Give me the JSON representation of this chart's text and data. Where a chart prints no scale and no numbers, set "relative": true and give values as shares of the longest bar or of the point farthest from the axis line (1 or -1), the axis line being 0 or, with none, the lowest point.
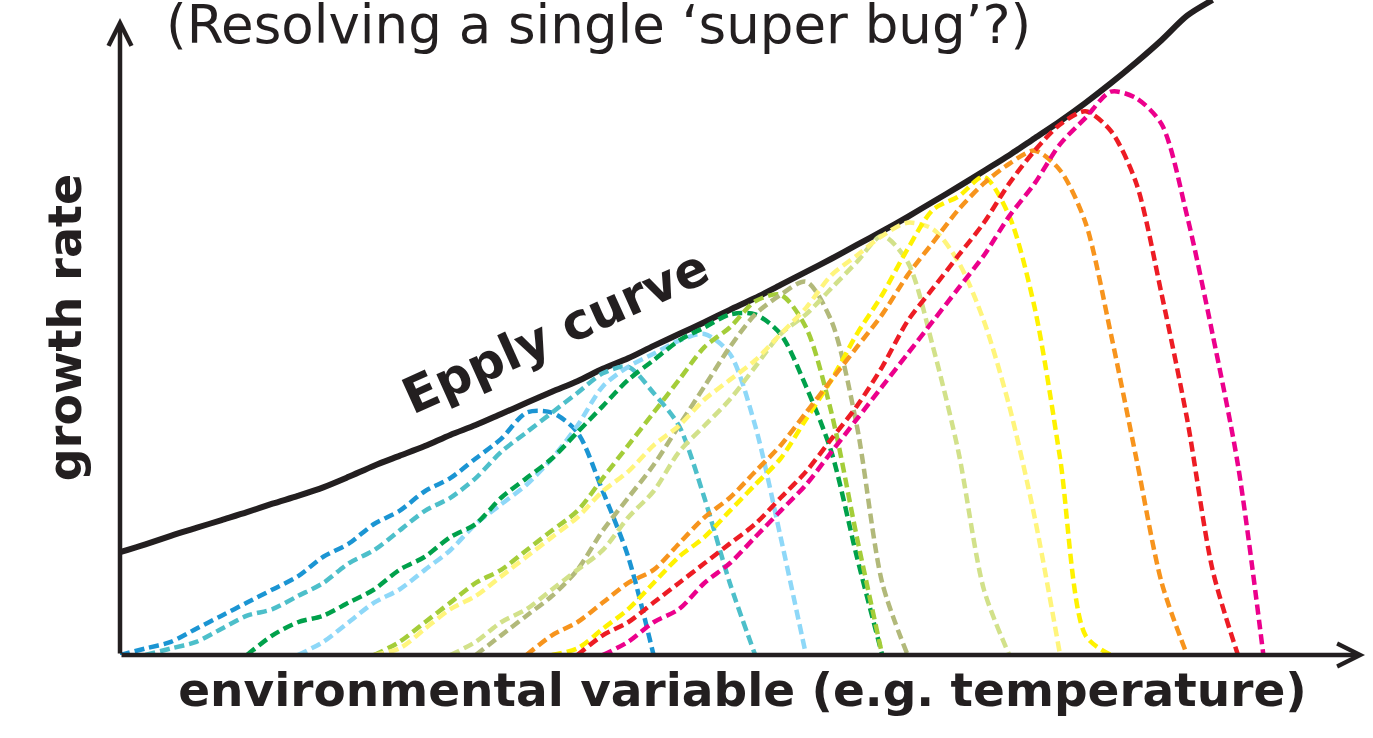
{
  "chart_data": {
    "type": "line",
    "title": "(Resolving a single ‘super bug’?)",
    "xlabel": "environmental variable (e.g. temperature)",
    "ylabel": "growth rate",
    "relative": true,
    "line_style": "dashed",
    "categories": [
      null,
      null,
      null,
      null,
      null,
      null,
      null,
      null,
      null,
      null,
      null,
      null,
      null,
      null,
      null,
      null,
      null,
      null,
      null,
      null,
      null,
      null,
      null,
      null,
      null,
      null,
      null,
      null,
      null,
      null,
      null,
      null,
      null,
      null,
      null,
      null,
      null,
      null,
      null,
      null,
      null,
      null,
      null,
      null,
      null,
      null,
      null,
      null,
      null,
      null
    ],
    "series": [
      {
        "name": "Epply curve",
        "color": "#231f20",
        "line_style": "solid",
        "values": [
          0.157,
          0.169,
          0.182,
          0.194,
          0.206,
          0.218,
          0.231,
          0.243,
          0.256,
          0.272,
          0.289,
          0.304,
          0.319,
          0.336,
          0.351,
          0.368,
          0.385,
          0.402,
          0.418,
          0.437,
          0.453,
          0.472,
          0.49,
          0.508,
          0.527,
          0.545,
          0.565,
          0.585,
          0.605,
          0.626,
          0.647,
          0.669,
          0.692,
          0.715,
          0.739,
          0.763,
          0.789,
          0.815,
          0.843,
          0.873,
          0.905,
          0.939,
          0.976,
          1.0,
          null,
          null,
          null,
          null,
          null,
          null
        ]
      },
      {
        "color": "#1b95d3",
        "values": [
          0,
          0.01,
          0.02,
          0.04,
          0.06,
          0.08,
          0.1,
          0.12,
          0.15,
          0.17,
          0.2,
          0.22,
          0.25,
          0.27,
          0.3,
          0.33,
          0.37,
          0.37,
          0.34,
          0.25,
          0.15,
          0,
          null,
          null,
          null,
          null,
          null,
          null,
          null,
          null,
          null,
          null,
          null,
          null,
          null,
          null,
          null,
          null,
          null,
          null,
          null,
          null,
          null,
          null,
          null,
          null,
          null,
          null,
          null,
          null
        ]
      },
      {
        "color": "#4dbfca",
        "values": [
          null,
          0,
          0.01,
          0.02,
          0.04,
          0.06,
          0.07,
          0.09,
          0.11,
          0.14,
          0.16,
          0.19,
          0.22,
          0.24,
          0.27,
          0.31,
          0.34,
          0.37,
          0.4,
          0.43,
          0.44,
          0.4,
          0.35,
          0.24,
          0.11,
          0,
          null,
          null,
          null,
          null,
          null,
          null,
          null,
          null,
          null,
          null,
          null,
          null,
          null,
          null,
          null,
          null,
          null,
          null,
          null,
          null,
          null,
          null,
          null,
          null
        ]
      },
      {
        "color": "#8ed8f8",
        "values": [
          null,
          null,
          null,
          null,
          null,
          null,
          null,
          0,
          0.02,
          0.05,
          0.08,
          0.1,
          0.13,
          0.16,
          0.2,
          0.23,
          0.26,
          0.3,
          0.35,
          0.41,
          0.44,
          0.46,
          0.48,
          0.49,
          0.46,
          0.35,
          0.18,
          0,
          null,
          null,
          null,
          null,
          null,
          null,
          null,
          null,
          null,
          null,
          null,
          null,
          null,
          null,
          null,
          null,
          null,
          null,
          null,
          null,
          null,
          null
        ]
      },
      {
        "color": "#00a14b",
        "values": [
          null,
          null,
          null,
          null,
          null,
          0,
          0.03,
          0.05,
          0.06,
          0.08,
          0.1,
          0.13,
          0.15,
          0.18,
          0.2,
          0.24,
          0.27,
          0.3,
          0.34,
          0.38,
          0.42,
          0.45,
          0.48,
          0.5,
          0.52,
          0.52,
          0.49,
          0.41,
          0.31,
          0.15,
          0,
          null,
          null,
          null,
          null,
          null,
          null,
          null,
          null,
          null,
          null,
          null,
          null,
          null,
          null,
          null,
          null,
          null,
          null,
          null
        ]
      },
      {
        "color": "#a4cd39",
        "values": [
          null,
          null,
          null,
          null,
          null,
          null,
          null,
          null,
          null,
          null,
          0,
          0.02,
          0.05,
          0.08,
          0.11,
          0.13,
          0.16,
          0.19,
          0.22,
          0.27,
          0.32,
          0.37,
          0.42,
          0.47,
          0.5,
          0.54,
          0.55,
          0.5,
          0.37,
          0.18,
          0,
          null,
          null,
          null,
          null,
          null,
          null,
          null,
          null,
          null,
          null,
          null,
          null,
          null,
          null,
          null,
          null,
          null,
          null,
          null
        ]
      },
      {
        "color": "#b2b97a",
        "values": [
          null,
          null,
          null,
          null,
          null,
          null,
          null,
          null,
          null,
          null,
          null,
          null,
          null,
          null,
          0,
          0.03,
          0.06,
          0.09,
          0.13,
          0.19,
          0.24,
          0.29,
          0.35,
          0.41,
          0.47,
          0.52,
          0.55,
          0.57,
          0.51,
          0.35,
          0.11,
          0,
          null,
          null,
          null,
          null,
          null,
          null,
          null,
          null,
          null,
          null,
          null,
          null,
          null,
          null,
          null,
          null,
          null,
          null
        ]
      },
      {
        "color": "#d2e18a",
        "values": [
          null,
          null,
          null,
          null,
          null,
          null,
          null,
          null,
          null,
          null,
          null,
          null,
          null,
          0,
          0.02,
          0.05,
          0.07,
          0.1,
          0.13,
          0.16,
          0.21,
          0.25,
          0.31,
          0.35,
          0.39,
          0.44,
          0.49,
          0.52,
          0.56,
          0.6,
          0.64,
          0.6,
          0.47,
          0.31,
          0.1,
          0,
          null,
          null,
          null,
          null,
          null,
          null,
          null,
          null,
          null,
          null,
          null,
          null,
          null,
          null
        ]
      },
      {
        "color": "#fff57c",
        "values": [
          null,
          null,
          null,
          null,
          null,
          null,
          null,
          null,
          null,
          null,
          0,
          0.01,
          0.04,
          0.07,
          0.09,
          0.12,
          0.15,
          0.18,
          0.21,
          0.25,
          0.28,
          0.32,
          0.35,
          0.39,
          0.42,
          0.45,
          0.49,
          0.53,
          0.58,
          0.61,
          0.64,
          0.66,
          0.65,
          0.6,
          0.51,
          0.38,
          0.21,
          0,
          null,
          null,
          null,
          null,
          null,
          null,
          null,
          null,
          null,
          null,
          null,
          null
        ]
      },
      {
        "color": "#fff200",
        "values": [
          null,
          null,
          null,
          null,
          null,
          null,
          null,
          null,
          null,
          null,
          null,
          null,
          null,
          null,
          null,
          null,
          null,
          0,
          0.01,
          0.04,
          0.07,
          0.11,
          0.15,
          0.18,
          0.22,
          0.26,
          0.3,
          0.36,
          0.42,
          0.49,
          0.55,
          0.62,
          0.68,
          0.7,
          0.73,
          0.67,
          0.53,
          0.3,
          0.03,
          0,
          null,
          null,
          null,
          null,
          null,
          null,
          null,
          null,
          null,
          null
        ]
      },
      {
        "color": "#f7941d",
        "values": [
          null,
          null,
          null,
          null,
          null,
          null,
          null,
          null,
          null,
          null,
          null,
          null,
          null,
          null,
          null,
          null,
          0,
          0.03,
          0.05,
          0.08,
          0.11,
          0.13,
          0.17,
          0.21,
          0.24,
          0.28,
          0.32,
          0.37,
          0.42,
          0.47,
          0.52,
          0.58,
          0.63,
          0.68,
          0.72,
          0.75,
          0.77,
          0.74,
          0.66,
          0.49,
          0.3,
          0.11,
          0,
          null,
          null,
          null,
          null,
          null,
          null,
          null
        ]
      },
      {
        "color": "#ed1c24",
        "values": [
          null,
          null,
          null,
          null,
          null,
          null,
          null,
          null,
          null,
          null,
          null,
          null,
          null,
          null,
          null,
          null,
          null,
          null,
          0,
          0.03,
          0.05,
          0.08,
          0.11,
          0.14,
          0.17,
          0.2,
          0.24,
          0.28,
          0.33,
          0.38,
          0.44,
          0.51,
          0.56,
          0.61,
          0.66,
          0.72,
          0.77,
          0.81,
          0.83,
          0.8,
          0.72,
          0.55,
          0.36,
          0.13,
          0,
          null,
          null,
          null,
          null,
          null
        ]
      },
      {
        "color": "#ec008c",
        "values": [
          null,
          null,
          null,
          null,
          null,
          null,
          null,
          null,
          null,
          null,
          null,
          null,
          null,
          null,
          null,
          null,
          null,
          null,
          null,
          0,
          0.02,
          0.05,
          0.07,
          0.11,
          0.14,
          0.18,
          0.22,
          0.26,
          0.31,
          0.36,
          0.41,
          0.46,
          0.51,
          0.56,
          0.61,
          0.67,
          0.72,
          0.78,
          0.82,
          0.86,
          0.85,
          0.81,
          0.67,
          0.49,
          0.29,
          0,
          null,
          null,
          null,
          null
        ]
      }
    ]
  }
}
